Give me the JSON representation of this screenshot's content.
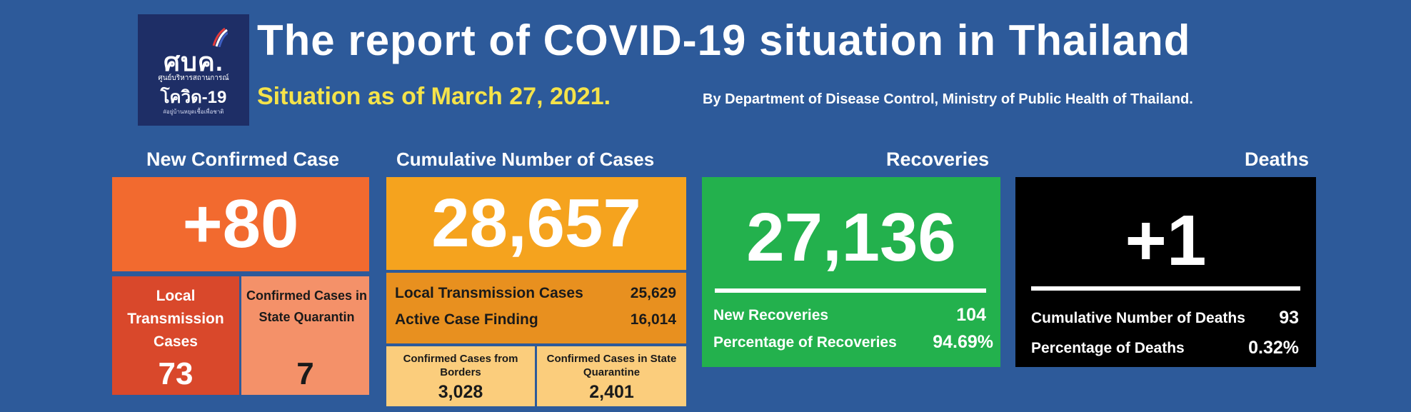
{
  "logo": {
    "mark": "ศบค.",
    "line1": "ศูนย์บริหารสถานการณ์",
    "line2": "โควิด-19",
    "line3": "#อยู่บ้านหยุดเชื้อเพื่อชาติ"
  },
  "header": {
    "title": "The report of COVID-19 situation in Thailand",
    "subtitle": "Situation as of March 27, 2021.",
    "source": "By Department of Disease Control, Ministry of Public Health of Thailand."
  },
  "new_confirmed": {
    "label": "New Confirmed Case",
    "value": "+80",
    "local_label": "Local Transmission Cases",
    "local_value": "73",
    "quarantine_label": "Confirmed Cases in State Quarantin",
    "quarantine_value": "7"
  },
  "cumulative": {
    "label": "Cumulative Number of Cases",
    "value": "28,657",
    "local_label": "Local Transmission Cases",
    "local_value": "25,629",
    "acf_label": "Active Case Finding",
    "acf_value": "16,014",
    "borders_label": "Confirmed Cases from Borders",
    "borders_value": "3,028",
    "quarantine_label": "Confirmed Cases in State Quarantine",
    "quarantine_value": "2,401"
  },
  "recoveries": {
    "label": "Recoveries",
    "value": "27,136",
    "new_label": "New Recoveries",
    "new_value": "104",
    "pct_label": "Percentage of Recoveries",
    "pct_value": "94.69%"
  },
  "deaths": {
    "label": "Deaths",
    "value": "+1",
    "cum_label": "Cumulative Number of Deaths",
    "cum_value": "93",
    "pct_label": "Percentage of Deaths",
    "pct_value": "0.32%"
  },
  "colors": {
    "background": "#2d5a9a",
    "title_yellow": "#f5e34a",
    "orange": "#f26a2f",
    "amber": "#f5a31e",
    "green": "#23b14d",
    "black": "#000000"
  }
}
